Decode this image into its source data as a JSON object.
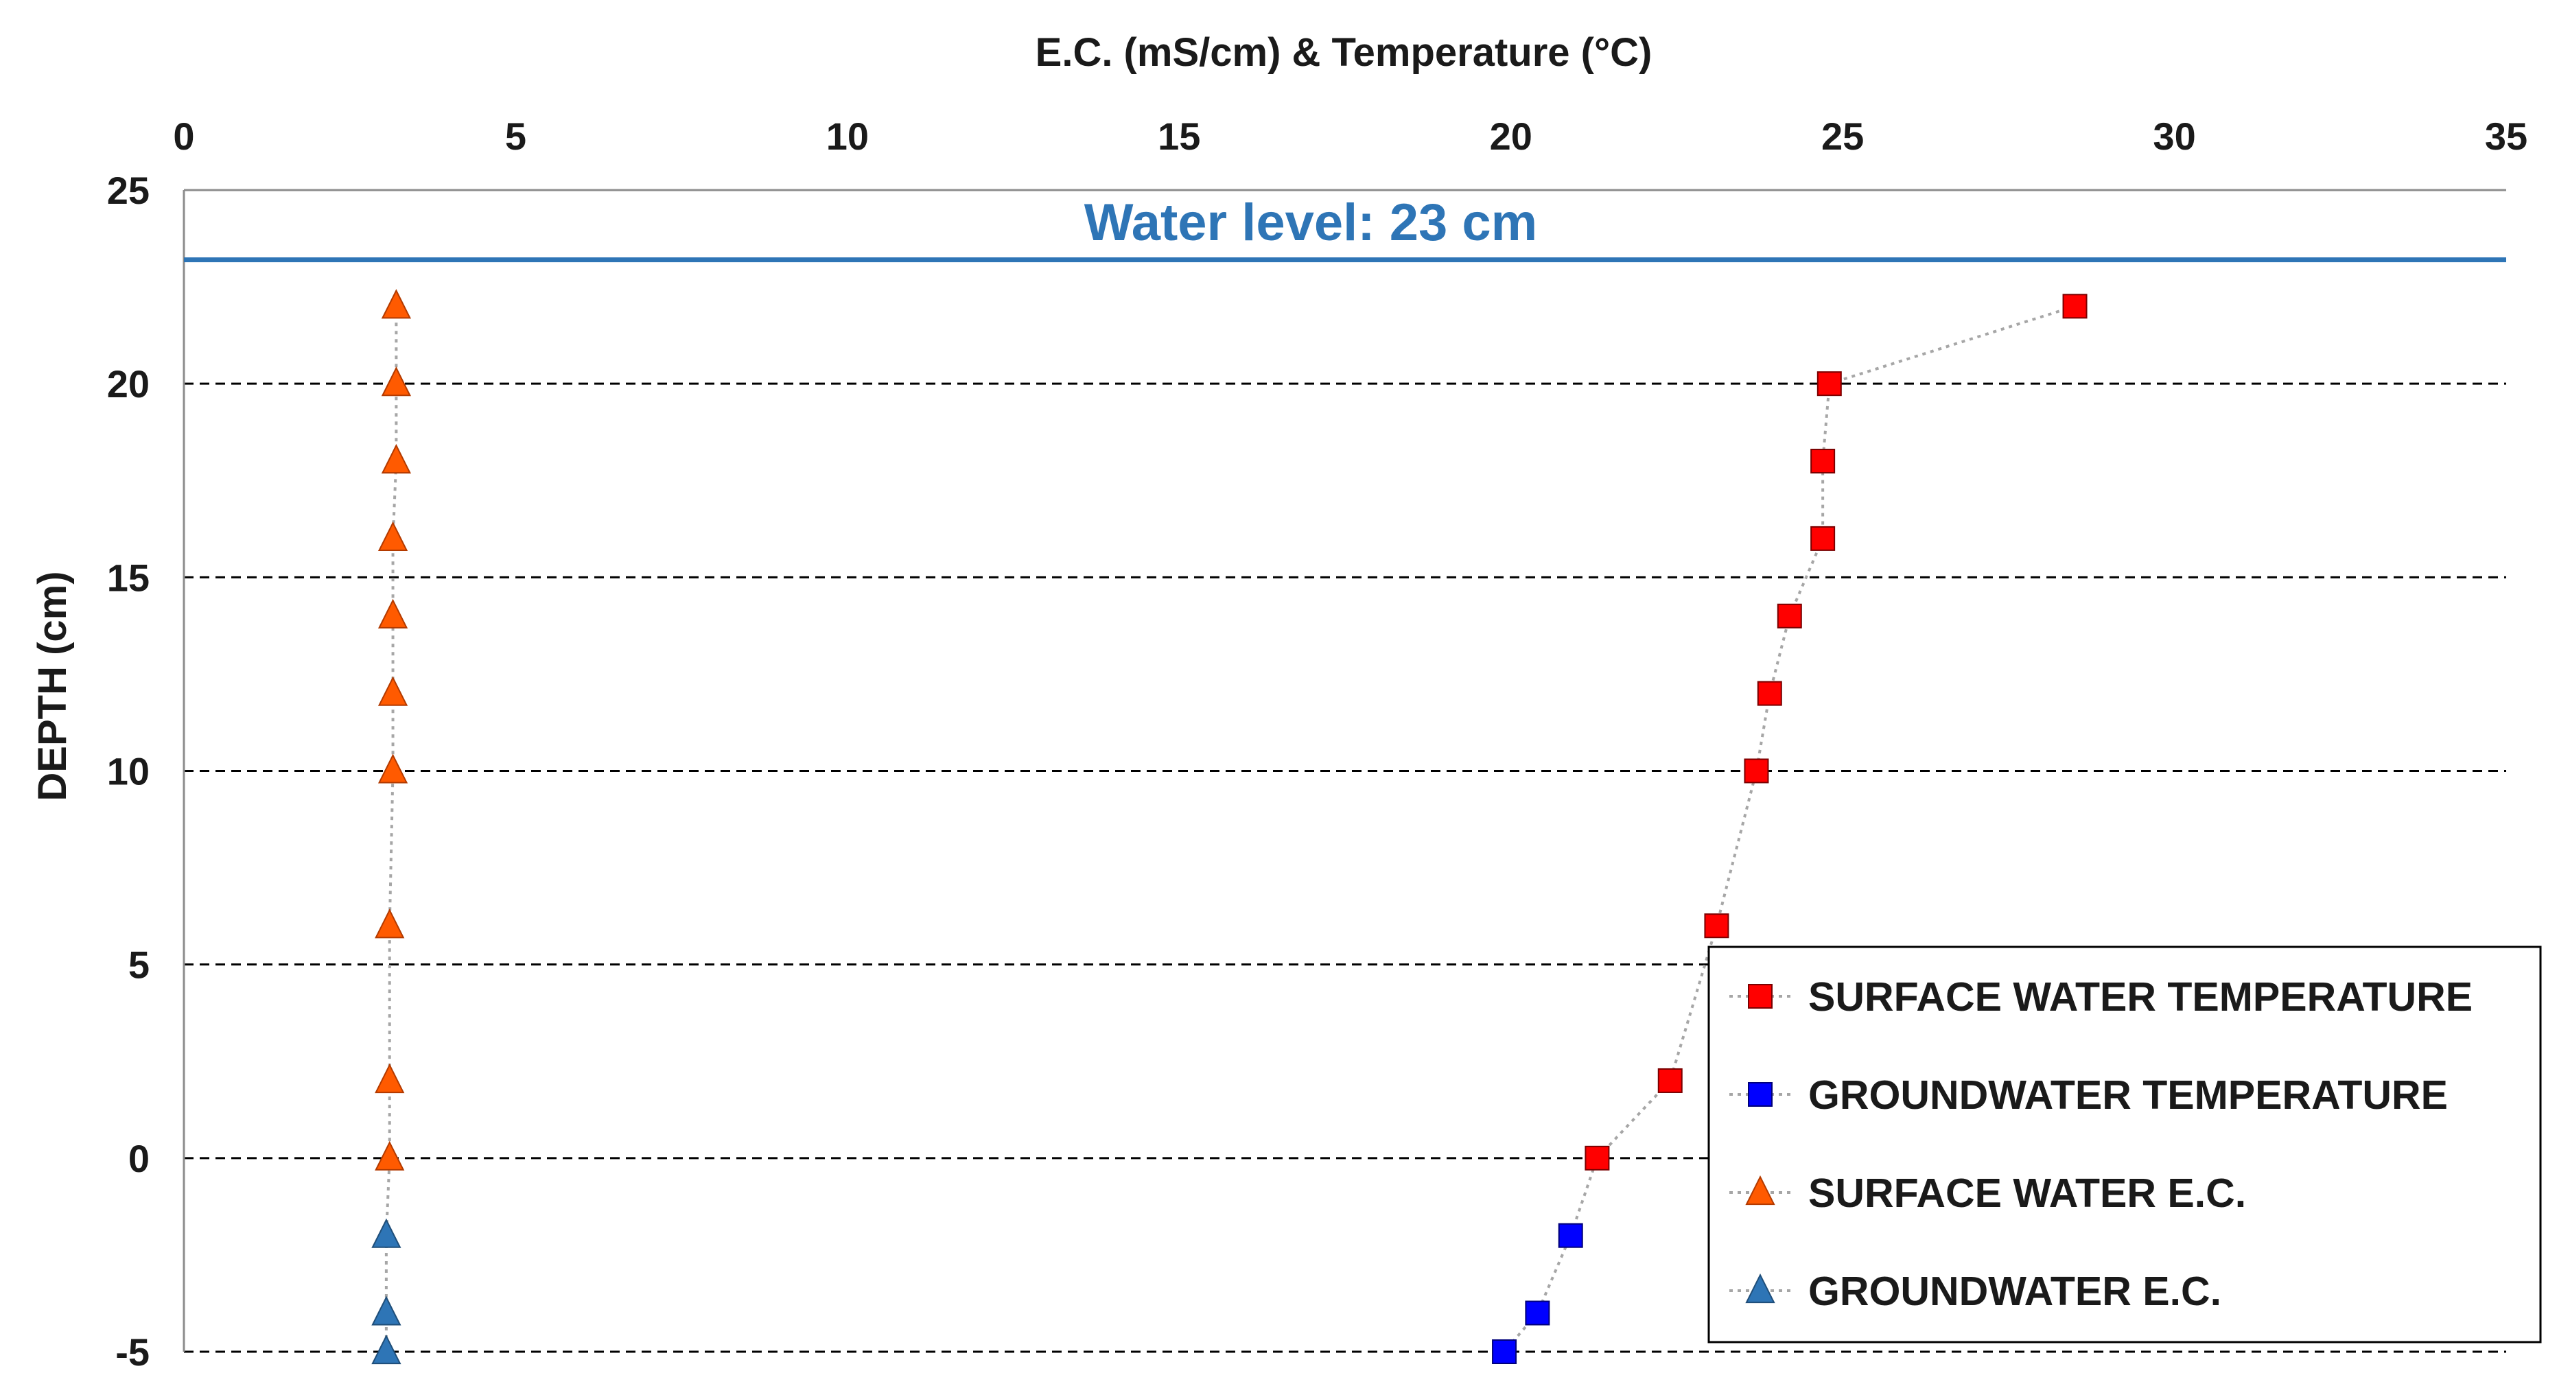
{
  "chart_data": {
    "type": "scatter",
    "title": "",
    "xlabel": "E.C. (mS/cm) & Temperature (°C)",
    "ylabel": "DEPTH (cm)",
    "xlim": [
      0,
      35
    ],
    "ylim": [
      -5,
      25
    ],
    "x_ticks": [
      0,
      5,
      10,
      15,
      20,
      25,
      30,
      35
    ],
    "y_ticks": [
      -5,
      0,
      5,
      10,
      15,
      20,
      25
    ],
    "x_axis_position": "top",
    "grid": "horizontal dashed",
    "legend_position": "bottom-right",
    "water_level": {
      "label": "Water level: 23 cm",
      "depth": 23.2,
      "color": "#2E75B6"
    },
    "series": [
      {
        "name": "SURFACE WATER TEMPERATURE",
        "marker": "square",
        "color": "#FF0000",
        "x": [
          28.5,
          24.8,
          24.7,
          24.7,
          24.2,
          23.9,
          23.7,
          23.1,
          22.4,
          21.3
        ],
        "y": [
          22,
          20,
          18,
          16,
          14,
          12,
          10,
          6,
          2,
          0
        ]
      },
      {
        "name": "GROUNDWATER TEMPERATURE",
        "marker": "square",
        "color": "#0000FF",
        "x": [
          20.9,
          20.4,
          19.9
        ],
        "y": [
          -2,
          -4,
          -5
        ]
      },
      {
        "name": "SURFACE WATER E.C.",
        "marker": "triangle",
        "color": "#FF5A00",
        "x": [
          3.2,
          3.2,
          3.2,
          3.15,
          3.15,
          3.15,
          3.15,
          3.1,
          3.1,
          3.1
        ],
        "y": [
          22,
          20,
          18,
          16,
          14,
          12,
          10,
          6,
          2,
          0
        ]
      },
      {
        "name": "GROUNDWATER E.C.",
        "marker": "triangle",
        "color": "#2E75B6",
        "x": [
          3.05,
          3.05,
          3.05
        ],
        "y": [
          -2,
          -4,
          -5
        ]
      }
    ]
  }
}
